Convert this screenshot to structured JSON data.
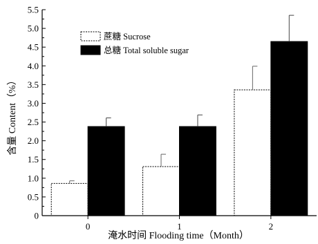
{
  "chart_data": {
    "type": "bar",
    "categories": [
      "0",
      "1",
      "2"
    ],
    "series": [
      {
        "name": "蔗糖 Sucrose",
        "values": [
          0.86,
          1.31,
          3.36
        ],
        "errors": [
          0.07,
          0.33,
          0.63
        ],
        "color": "#ffffff"
      },
      {
        "name": "总糖 Total soluble sugar",
        "values": [
          2.38,
          2.38,
          4.65
        ],
        "errors": [
          0.23,
          0.31,
          0.7
        ],
        "color": "#000000"
      }
    ],
    "xlabel": "淹水时间 Flooding time（Month）",
    "ylabel": "含量 Content（%）",
    "ylim": [
      0,
      5.5
    ],
    "yticks": [
      "0",
      "0.5",
      "1.0",
      "1.5",
      "2.0",
      "2.5",
      "3.0",
      "3.5",
      "4.0",
      "4.5",
      "5.0",
      "5.5"
    ],
    "legend_position": "top-left",
    "grid": false
  }
}
